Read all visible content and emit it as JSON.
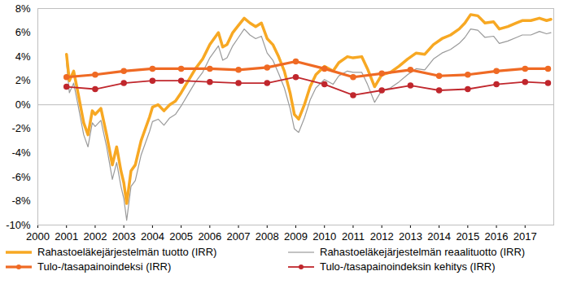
{
  "chart_data": {
    "type": "line",
    "xlim": [
      2000,
      2018
    ],
    "xticks": [
      2000,
      2001,
      2002,
      2003,
      2004,
      2005,
      2006,
      2007,
      2008,
      2009,
      2010,
      2011,
      2012,
      2013,
      2014,
      2015,
      2016,
      2017
    ],
    "ylim": [
      -10,
      8
    ],
    "yticks": [
      {
        "value": -10,
        "label": "-10%"
      },
      {
        "value": -8,
        "label": "-8%"
      },
      {
        "value": -6,
        "label": "-6%"
      },
      {
        "value": -4,
        "label": "-4%"
      },
      {
        "value": -2,
        "label": "-2%"
      },
      {
        "value": 0,
        "label": "0%"
      },
      {
        "value": 2,
        "label": "2%"
      },
      {
        "value": 4,
        "label": "4%"
      },
      {
        "value": 6,
        "label": "6%"
      },
      {
        "value": 8,
        "label": "8%"
      }
    ],
    "grid": false,
    "legend": "bottom",
    "series": [
      {
        "name": "Rahastoeläkejärjestelmän tuotto (IRR)",
        "color": "#f7a823",
        "x": [
          2001.0,
          2001.1,
          2001.25,
          2001.4,
          2001.6,
          2001.75,
          2001.9,
          2002.0,
          2002.2,
          2002.4,
          2002.6,
          2002.75,
          2002.9,
          2003.0,
          2003.1,
          2003.25,
          2003.4,
          2003.6,
          2003.75,
          2003.9,
          2004.0,
          2004.2,
          2004.4,
          2004.6,
          2004.8,
          2005.0,
          2005.25,
          2005.5,
          2005.75,
          2006.0,
          2006.3,
          2006.45,
          2006.6,
          2006.8,
          2007.0,
          2007.2,
          2007.4,
          2007.6,
          2007.8,
          2008.0,
          2008.2,
          2008.4,
          2008.6,
          2008.8,
          2008.95,
          2009.1,
          2009.3,
          2009.5,
          2009.7,
          2010.0,
          2010.3,
          2010.5,
          2010.8,
          2011.0,
          2011.3,
          2011.5,
          2011.75,
          2012.0,
          2012.3,
          2012.6,
          2012.9,
          2013.2,
          2013.5,
          2013.8,
          2014.1,
          2014.4,
          2014.7,
          2014.9,
          2015.1,
          2015.35,
          2015.6,
          2015.9,
          2016.1,
          2016.4,
          2016.7,
          2016.9,
          2017.2,
          2017.5,
          2017.75,
          2017.9
        ],
        "values": [
          4.2,
          2.0,
          2.8,
          1.0,
          -1.5,
          -2.5,
          -0.5,
          -0.8,
          -0.3,
          -2.5,
          -5.0,
          -3.5,
          -5.5,
          -6.5,
          -8.2,
          -5.5,
          -5.0,
          -3.0,
          -2.0,
          -1.0,
          -0.2,
          0.0,
          -0.5,
          0.0,
          0.3,
          1.0,
          2.0,
          3.0,
          3.8,
          5.0,
          6.0,
          4.8,
          5.0,
          6.0,
          6.6,
          7.2,
          6.8,
          6.5,
          6.8,
          5.5,
          5.0,
          4.0,
          2.8,
          1.0,
          -0.8,
          -1.2,
          0.0,
          1.5,
          2.5,
          3.2,
          2.8,
          3.5,
          4.0,
          3.9,
          4.0,
          3.0,
          1.5,
          2.5,
          2.7,
          3.2,
          3.8,
          4.3,
          4.2,
          5.0,
          5.5,
          5.8,
          6.3,
          6.8,
          7.5,
          7.4,
          6.8,
          6.9,
          6.3,
          6.5,
          6.8,
          7.0,
          7.0,
          7.2,
          7.0,
          7.1
        ],
        "marker": "none",
        "line_style": "solid"
      },
      {
        "name": "Rahastoeläkejärjestelmän reaalituotto (IRR)",
        "color": "#9a9a9a",
        "x": [
          2001.0,
          2001.1,
          2001.25,
          2001.4,
          2001.6,
          2001.75,
          2001.9,
          2002.0,
          2002.2,
          2002.4,
          2002.6,
          2002.75,
          2002.9,
          2003.0,
          2003.1,
          2003.25,
          2003.4,
          2003.6,
          2003.75,
          2003.9,
          2004.0,
          2004.2,
          2004.4,
          2004.6,
          2004.8,
          2005.0,
          2005.25,
          2005.5,
          2005.75,
          2006.0,
          2006.3,
          2006.45,
          2006.6,
          2006.8,
          2007.0,
          2007.2,
          2007.4,
          2007.6,
          2007.8,
          2008.0,
          2008.2,
          2008.4,
          2008.6,
          2008.8,
          2008.95,
          2009.1,
          2009.3,
          2009.5,
          2009.7,
          2010.0,
          2010.3,
          2010.5,
          2010.8,
          2011.0,
          2011.3,
          2011.5,
          2011.75,
          2012.0,
          2012.3,
          2012.6,
          2012.9,
          2013.2,
          2013.5,
          2013.8,
          2014.1,
          2014.4,
          2014.7,
          2014.9,
          2015.1,
          2015.35,
          2015.6,
          2015.9,
          2016.1,
          2016.4,
          2016.7,
          2016.9,
          2017.2,
          2017.5,
          2017.75,
          2017.9
        ],
        "values": [
          3.5,
          1.0,
          1.8,
          0.0,
          -2.5,
          -3.5,
          -1.5,
          -1.8,
          -1.3,
          -3.5,
          -6.2,
          -4.8,
          -6.8,
          -7.8,
          -9.6,
          -6.8,
          -6.3,
          -4.2,
          -3.2,
          -2.2,
          -1.4,
          -1.2,
          -1.7,
          -1.1,
          -0.8,
          -0.1,
          0.9,
          1.9,
          2.7,
          3.9,
          4.9,
          3.7,
          3.9,
          4.9,
          5.6,
          6.3,
          5.8,
          5.5,
          5.7,
          4.3,
          3.7,
          2.6,
          1.4,
          -0.3,
          -2.0,
          -2.3,
          -1.1,
          0.4,
          1.4,
          2.1,
          1.7,
          2.4,
          2.8,
          2.7,
          2.7,
          1.7,
          0.2,
          1.2,
          1.4,
          1.9,
          2.5,
          3.0,
          2.9,
          3.8,
          4.3,
          4.6,
          5.1,
          5.6,
          6.3,
          6.2,
          5.6,
          5.7,
          5.1,
          5.3,
          5.6,
          5.8,
          5.8,
          6.1,
          5.9,
          6.0
        ],
        "marker": "none",
        "line_style": "solid"
      },
      {
        "name": "Tulo-/tasapainoindeksi (IRR)",
        "color": "#ef6a24",
        "x": [
          2001,
          2002,
          2003,
          2004,
          2005,
          2006,
          2007,
          2008,
          2009,
          2010,
          2011,
          2012,
          2013,
          2014,
          2015,
          2016,
          2017,
          2017.8
        ],
        "values": [
          2.3,
          2.5,
          2.8,
          3.0,
          3.0,
          3.0,
          2.9,
          3.1,
          3.6,
          3.0,
          2.3,
          2.6,
          2.9,
          2.4,
          2.5,
          2.8,
          3.0,
          3.0
        ],
        "marker": "circle",
        "line_style": "solid"
      },
      {
        "name": "Tulo-/tasapainoindeksin kehitys (IRR)",
        "color": "#c0272d",
        "x": [
          2001,
          2002,
          2003,
          2004,
          2005,
          2006,
          2007,
          2008,
          2009,
          2010,
          2011,
          2012,
          2013,
          2014,
          2015,
          2016,
          2017,
          2017.8
        ],
        "values": [
          1.5,
          1.3,
          1.8,
          2.0,
          2.0,
          1.9,
          1.8,
          1.8,
          2.3,
          1.7,
          0.8,
          1.2,
          1.6,
          1.2,
          1.3,
          1.7,
          1.9,
          1.8
        ],
        "marker": "circle",
        "line_style": "solid"
      }
    ]
  }
}
